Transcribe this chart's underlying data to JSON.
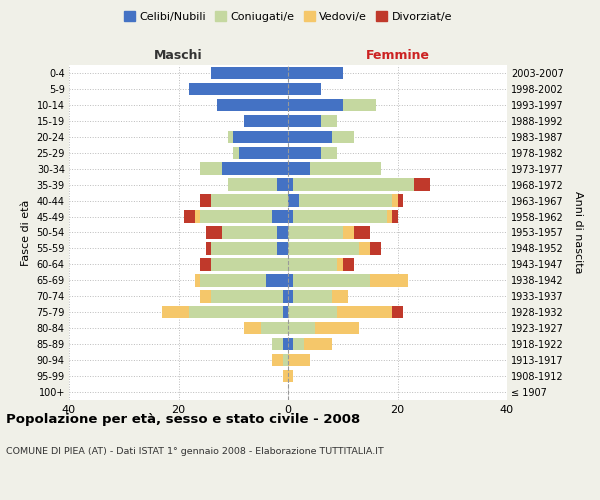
{
  "age_groups": [
    "100+",
    "95-99",
    "90-94",
    "85-89",
    "80-84",
    "75-79",
    "70-74",
    "65-69",
    "60-64",
    "55-59",
    "50-54",
    "45-49",
    "40-44",
    "35-39",
    "30-34",
    "25-29",
    "20-24",
    "15-19",
    "10-14",
    "5-9",
    "0-4"
  ],
  "birth_years": [
    "≤ 1907",
    "1908-1912",
    "1913-1917",
    "1918-1922",
    "1923-1927",
    "1928-1932",
    "1933-1937",
    "1938-1942",
    "1943-1947",
    "1948-1952",
    "1953-1957",
    "1958-1962",
    "1963-1967",
    "1968-1972",
    "1973-1977",
    "1978-1982",
    "1983-1987",
    "1988-1992",
    "1993-1997",
    "1998-2002",
    "2003-2007"
  ],
  "maschi_celibi": [
    0,
    0,
    0,
    1,
    0,
    1,
    1,
    4,
    0,
    2,
    2,
    3,
    0,
    2,
    12,
    9,
    10,
    8,
    13,
    18,
    14
  ],
  "maschi_coniugati": [
    0,
    0,
    1,
    2,
    5,
    17,
    13,
    12,
    14,
    12,
    10,
    13,
    14,
    9,
    4,
    1,
    1,
    0,
    0,
    0,
    0
  ],
  "maschi_vedovi": [
    0,
    1,
    2,
    0,
    3,
    5,
    2,
    1,
    0,
    0,
    0,
    1,
    0,
    0,
    0,
    0,
    0,
    0,
    0,
    0,
    0
  ],
  "maschi_divorziati": [
    0,
    0,
    0,
    0,
    0,
    0,
    0,
    0,
    2,
    1,
    3,
    2,
    2,
    0,
    0,
    0,
    0,
    0,
    0,
    0,
    0
  ],
  "femmine_celibi": [
    0,
    0,
    0,
    1,
    0,
    0,
    1,
    1,
    0,
    0,
    0,
    1,
    2,
    1,
    4,
    6,
    8,
    6,
    10,
    6,
    10
  ],
  "femmine_coniugati": [
    0,
    0,
    0,
    2,
    5,
    9,
    7,
    14,
    9,
    13,
    10,
    17,
    17,
    22,
    13,
    3,
    4,
    3,
    6,
    0,
    0
  ],
  "femmine_vedovi": [
    0,
    1,
    4,
    5,
    8,
    10,
    3,
    7,
    1,
    2,
    2,
    1,
    1,
    0,
    0,
    0,
    0,
    0,
    0,
    0,
    0
  ],
  "femmine_divorziati": [
    0,
    0,
    0,
    0,
    0,
    2,
    0,
    0,
    2,
    2,
    3,
    1,
    1,
    3,
    0,
    0,
    0,
    0,
    0,
    0,
    0
  ],
  "color_celibi": "#4472c4",
  "color_coniugati": "#c5d8a0",
  "color_vedovi": "#f5c76a",
  "color_divorziati": "#c0392b",
  "title": "Popolazione per età, sesso e stato civile - 2008",
  "subtitle": "COMUNE DI PIEA (AT) - Dati ISTAT 1° gennaio 2008 - Elaborazione TUTTITALIA.IT",
  "label_maschi": "Maschi",
  "label_femmine": "Femmine",
  "ylabel_left": "Fasce di età",
  "ylabel_right": "Anni di nascita",
  "legend_labels": [
    "Celibi/Nubili",
    "Coniugati/e",
    "Vedovi/e",
    "Divorziat/e"
  ],
  "xlim": 40,
  "bg_color": "#f0f0e8",
  "plot_bg_color": "#ffffff"
}
